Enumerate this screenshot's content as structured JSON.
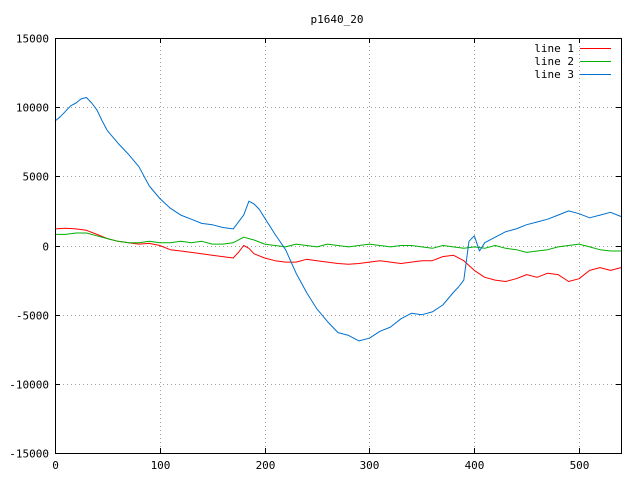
{
  "chart_data": {
    "type": "line",
    "title": "p1640_20",
    "xlabel": "",
    "ylabel": "",
    "xlim": [
      0,
      540
    ],
    "ylim": [
      -15000,
      15000
    ],
    "xticks": [
      0,
      100,
      200,
      300,
      400,
      500
    ],
    "yticks": [
      -15000,
      -10000,
      -5000,
      0,
      5000,
      10000,
      15000
    ],
    "grid": true,
    "legend_position": "top-right",
    "series": [
      {
        "name": "line 1",
        "color": "#ff0000",
        "x": [
          0,
          10,
          20,
          30,
          40,
          50,
          60,
          70,
          80,
          90,
          100,
          110,
          120,
          130,
          140,
          150,
          160,
          170,
          175,
          180,
          185,
          190,
          200,
          210,
          220,
          230,
          240,
          250,
          260,
          270,
          280,
          290,
          300,
          310,
          320,
          330,
          340,
          350,
          360,
          370,
          380,
          390,
          400,
          410,
          420,
          430,
          440,
          450,
          460,
          470,
          480,
          490,
          500,
          510,
          520,
          530,
          540
        ],
        "y": [
          1200,
          1250,
          1200,
          1100,
          800,
          500,
          300,
          200,
          100,
          150,
          0,
          -300,
          -400,
          -500,
          -600,
          -700,
          -800,
          -900,
          -500,
          0,
          -200,
          -600,
          -900,
          -1100,
          -1200,
          -1200,
          -1000,
          -1100,
          -1200,
          -1300,
          -1350,
          -1300,
          -1200,
          -1100,
          -1200,
          -1300,
          -1200,
          -1100,
          -1100,
          -800,
          -700,
          -1100,
          -1800,
          -2300,
          -2500,
          -2600,
          -2400,
          -2100,
          -2300,
          -2000,
          -2100,
          -2600,
          -2400,
          -1800,
          -1600,
          -1800,
          -1600
        ]
      },
      {
        "name": "line 2",
        "color": "#00b000",
        "x": [
          0,
          10,
          20,
          30,
          40,
          50,
          60,
          70,
          80,
          90,
          100,
          110,
          120,
          130,
          140,
          150,
          160,
          170,
          180,
          190,
          200,
          210,
          220,
          230,
          240,
          250,
          260,
          270,
          280,
          290,
          300,
          310,
          320,
          330,
          340,
          350,
          360,
          370,
          380,
          390,
          400,
          410,
          420,
          430,
          440,
          450,
          460,
          470,
          480,
          490,
          500,
          510,
          520,
          530,
          540
        ],
        "y": [
          800,
          800,
          900,
          900,
          700,
          500,
          300,
          200,
          200,
          300,
          200,
          200,
          300,
          200,
          300,
          100,
          100,
          200,
          600,
          400,
          100,
          0,
          -100,
          100,
          0,
          -100,
          100,
          0,
          -100,
          0,
          100,
          0,
          -100,
          0,
          0,
          -100,
          -200,
          0,
          -100,
          -200,
          -100,
          -200,
          0,
          -200,
          -300,
          -500,
          -400,
          -300,
          -100,
          0,
          100,
          -100,
          -300,
          -400,
          -400
        ]
      },
      {
        "name": "line 3",
        "color": "#0070d0",
        "x": [
          0,
          5,
          10,
          15,
          20,
          25,
          30,
          35,
          40,
          45,
          50,
          60,
          70,
          80,
          90,
          100,
          110,
          120,
          130,
          140,
          150,
          160,
          170,
          180,
          185,
          190,
          195,
          200,
          210,
          220,
          230,
          240,
          250,
          260,
          270,
          280,
          290,
          300,
          310,
          320,
          330,
          340,
          350,
          360,
          370,
          380,
          385,
          390,
          395,
          400,
          405,
          410,
          420,
          430,
          440,
          450,
          460,
          470,
          480,
          490,
          500,
          510,
          520,
          530,
          540
        ],
        "y": [
          9000,
          9300,
          9700,
          10100,
          10300,
          10600,
          10700,
          10300,
          9800,
          9000,
          8300,
          7400,
          6600,
          5700,
          4300,
          3400,
          2700,
          2200,
          1900,
          1600,
          1500,
          1300,
          1200,
          2200,
          3200,
          3000,
          2600,
          2000,
          800,
          -300,
          -2000,
          -3400,
          -4600,
          -5500,
          -6300,
          -6500,
          -6900,
          -6700,
          -6200,
          -5900,
          -5300,
          -4900,
          -5000,
          -4800,
          -4300,
          -3400,
          -3000,
          -2500,
          300,
          700,
          -400,
          200,
          600,
          1000,
          1200,
          1500,
          1700,
          1900,
          2200,
          2500,
          2300,
          2000,
          2200,
          2400,
          2100
        ]
      }
    ]
  }
}
